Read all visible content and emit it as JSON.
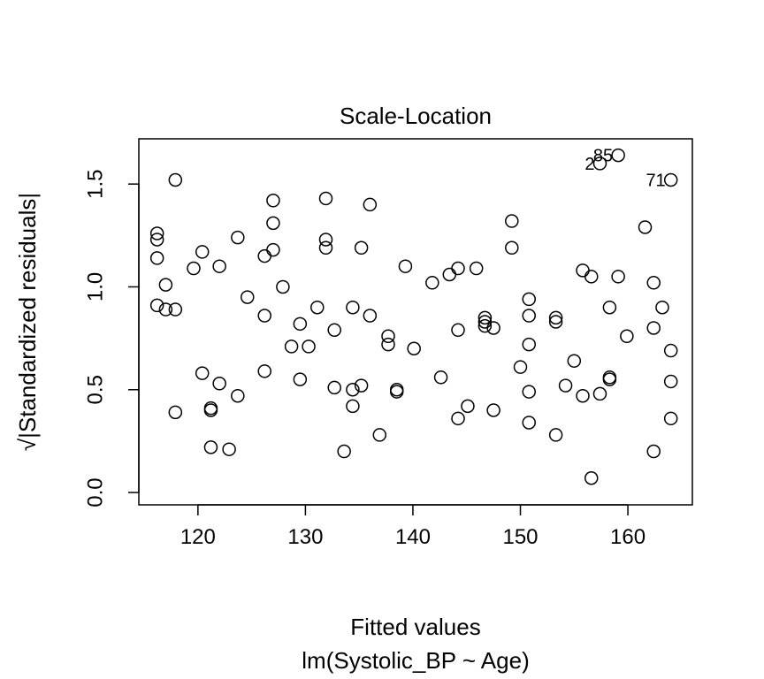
{
  "chart_data": {
    "type": "scatter",
    "title": "Scale-Location",
    "xlabel": "Fitted values",
    "subtitle": "lm(Systolic_BP ~ Age)",
    "ylabel": "√|Standardized residuals|",
    "xlim": [
      114.5,
      166.0
    ],
    "ylim": [
      -0.06,
      1.72
    ],
    "x_ticks": [
      120,
      130,
      140,
      150,
      160
    ],
    "y_ticks": [
      0.0,
      0.5,
      1.0,
      1.5
    ],
    "x_tick_labels": [
      "120",
      "130",
      "140",
      "150",
      "160"
    ],
    "y_tick_labels": [
      "0.0",
      "0.5",
      "1.0",
      "1.5"
    ],
    "grid": false,
    "legend": "none",
    "point_color": "#000000",
    "points": [
      {
        "x": 116.2,
        "y": 1.26
      },
      {
        "x": 116.2,
        "y": 1.23
      },
      {
        "x": 116.2,
        "y": 1.14
      },
      {
        "x": 116.2,
        "y": 0.91
      },
      {
        "x": 117.0,
        "y": 1.01
      },
      {
        "x": 117.0,
        "y": 0.89
      },
      {
        "x": 117.9,
        "y": 0.89
      },
      {
        "x": 117.9,
        "y": 1.52
      },
      {
        "x": 117.9,
        "y": 0.39
      },
      {
        "x": 119.6,
        "y": 1.09
      },
      {
        "x": 120.4,
        "y": 1.17
      },
      {
        "x": 120.4,
        "y": 0.58
      },
      {
        "x": 121.2,
        "y": 0.41
      },
      {
        "x": 121.2,
        "y": 0.4
      },
      {
        "x": 121.2,
        "y": 0.22
      },
      {
        "x": 122.0,
        "y": 1.1
      },
      {
        "x": 122.0,
        "y": 0.53
      },
      {
        "x": 122.9,
        "y": 0.21
      },
      {
        "x": 123.7,
        "y": 1.24
      },
      {
        "x": 123.7,
        "y": 0.47
      },
      {
        "x": 124.6,
        "y": 0.95
      },
      {
        "x": 126.2,
        "y": 1.15
      },
      {
        "x": 126.2,
        "y": 0.86
      },
      {
        "x": 126.2,
        "y": 0.59
      },
      {
        "x": 127.0,
        "y": 1.42
      },
      {
        "x": 127.0,
        "y": 1.31
      },
      {
        "x": 127.0,
        "y": 1.18
      },
      {
        "x": 127.9,
        "y": 1.0
      },
      {
        "x": 128.7,
        "y": 0.71
      },
      {
        "x": 129.5,
        "y": 0.82
      },
      {
        "x": 129.5,
        "y": 0.55
      },
      {
        "x": 130.3,
        "y": 0.71
      },
      {
        "x": 131.1,
        "y": 0.9
      },
      {
        "x": 131.9,
        "y": 1.43
      },
      {
        "x": 131.9,
        "y": 1.23
      },
      {
        "x": 131.9,
        "y": 1.19
      },
      {
        "x": 132.7,
        "y": 0.79
      },
      {
        "x": 132.7,
        "y": 0.51
      },
      {
        "x": 133.6,
        "y": 0.2
      },
      {
        "x": 134.4,
        "y": 0.9
      },
      {
        "x": 134.4,
        "y": 0.5
      },
      {
        "x": 134.4,
        "y": 0.42
      },
      {
        "x": 135.2,
        "y": 1.19
      },
      {
        "x": 135.2,
        "y": 0.52
      },
      {
        "x": 136.0,
        "y": 1.4
      },
      {
        "x": 136.0,
        "y": 0.86
      },
      {
        "x": 136.9,
        "y": 0.28
      },
      {
        "x": 137.7,
        "y": 0.76
      },
      {
        "x": 137.7,
        "y": 0.72
      },
      {
        "x": 138.5,
        "y": 0.49
      },
      {
        "x": 138.5,
        "y": 0.5
      },
      {
        "x": 139.3,
        "y": 1.1
      },
      {
        "x": 140.1,
        "y": 0.7
      },
      {
        "x": 141.8,
        "y": 1.02
      },
      {
        "x": 142.6,
        "y": 0.56
      },
      {
        "x": 143.4,
        "y": 1.06
      },
      {
        "x": 144.2,
        "y": 1.09
      },
      {
        "x": 144.2,
        "y": 0.79
      },
      {
        "x": 144.2,
        "y": 0.36
      },
      {
        "x": 145.1,
        "y": 0.42
      },
      {
        "x": 145.9,
        "y": 1.09
      },
      {
        "x": 146.7,
        "y": 0.85
      },
      {
        "x": 146.7,
        "y": 0.83
      },
      {
        "x": 146.7,
        "y": 0.81
      },
      {
        "x": 147.5,
        "y": 0.8
      },
      {
        "x": 147.5,
        "y": 0.4
      },
      {
        "x": 149.2,
        "y": 1.32
      },
      {
        "x": 149.2,
        "y": 1.19
      },
      {
        "x": 150.0,
        "y": 0.61
      },
      {
        "x": 150.8,
        "y": 0.94
      },
      {
        "x": 150.8,
        "y": 0.86
      },
      {
        "x": 150.8,
        "y": 0.72
      },
      {
        "x": 150.8,
        "y": 0.49
      },
      {
        "x": 150.8,
        "y": 0.34
      },
      {
        "x": 153.3,
        "y": 0.85
      },
      {
        "x": 153.3,
        "y": 0.83
      },
      {
        "x": 153.3,
        "y": 0.28
      },
      {
        "x": 154.2,
        "y": 0.52
      },
      {
        "x": 155.0,
        "y": 0.64
      },
      {
        "x": 155.8,
        "y": 1.08
      },
      {
        "x": 155.8,
        "y": 0.47
      },
      {
        "x": 156.6,
        "y": 1.05
      },
      {
        "x": 156.6,
        "y": 0.07
      },
      {
        "x": 157.4,
        "y": 1.6,
        "label": "2"
      },
      {
        "x": 157.4,
        "y": 0.48
      },
      {
        "x": 158.3,
        "y": 0.9
      },
      {
        "x": 158.3,
        "y": 0.56
      },
      {
        "x": 158.3,
        "y": 0.55
      },
      {
        "x": 159.1,
        "y": 1.64,
        "label": "85"
      },
      {
        "x": 159.1,
        "y": 1.05
      },
      {
        "x": 159.9,
        "y": 0.76
      },
      {
        "x": 161.6,
        "y": 1.29
      },
      {
        "x": 162.4,
        "y": 1.02
      },
      {
        "x": 162.4,
        "y": 0.8
      },
      {
        "x": 162.4,
        "y": 0.2
      },
      {
        "x": 163.2,
        "y": 0.9
      },
      {
        "x": 164.0,
        "y": 1.52,
        "label": "71"
      },
      {
        "x": 164.0,
        "y": 0.69
      },
      {
        "x": 164.0,
        "y": 0.54
      },
      {
        "x": 164.0,
        "y": 0.36
      }
    ]
  }
}
